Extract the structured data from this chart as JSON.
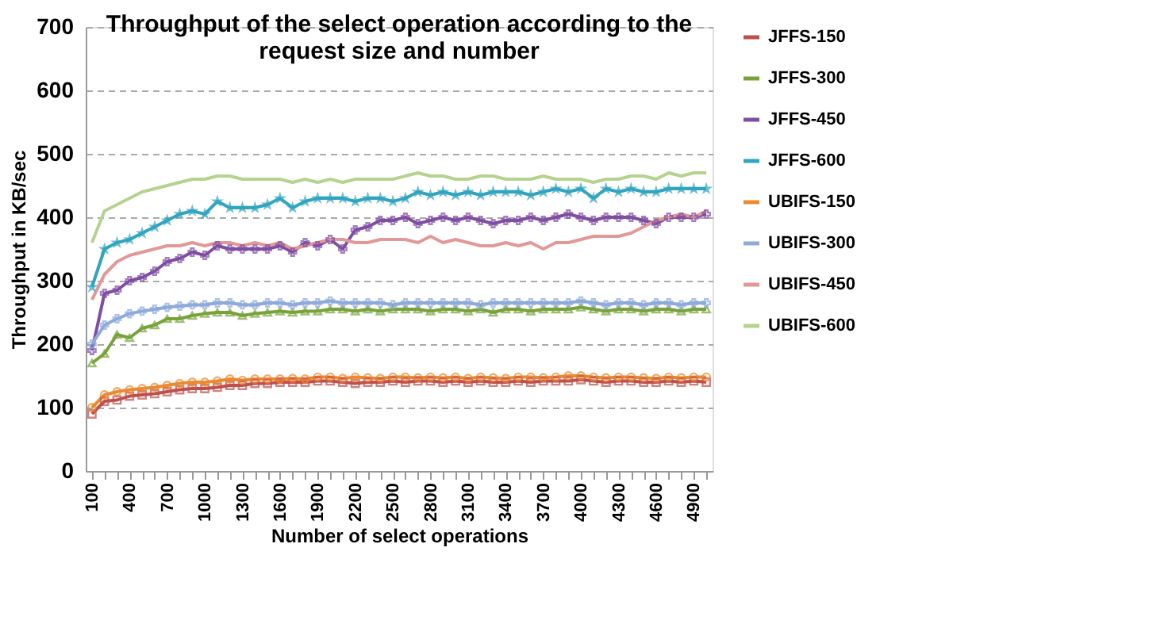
{
  "chart_data": {
    "type": "line",
    "title": [
      "Throughput of the select operation according to the",
      "request size and number"
    ],
    "xlabel": "Number of select operations",
    "ylabel": "Throughput  in KB/sec",
    "categories": [
      "100",
      null,
      null,
      "400",
      null,
      null,
      "700",
      null,
      null,
      "1000",
      null,
      null,
      "1300",
      null,
      null,
      "1600",
      null,
      null,
      "1900",
      null,
      null,
      "2200",
      null,
      null,
      "2500",
      null,
      null,
      "2800",
      null,
      null,
      "3100",
      null,
      null,
      "3400",
      null,
      null,
      "3700",
      null,
      null,
      "4000",
      null,
      null,
      "4300",
      null,
      null,
      "4600",
      null,
      null,
      "4900",
      null
    ],
    "ylim": [
      0,
      700
    ],
    "yticks": [
      0,
      100,
      200,
      300,
      400,
      500,
      600,
      700
    ],
    "grid": "y",
    "legend": "right",
    "series": [
      {
        "name": "JFFS-150",
        "color": "#c0504d",
        "marker": "square",
        "values": [
          90,
          110,
          112,
          118,
          120,
          122,
          125,
          128,
          130,
          130,
          132,
          135,
          135,
          138,
          138,
          140,
          140,
          140,
          142,
          142,
          140,
          138,
          140,
          140,
          142,
          140,
          142,
          142,
          140,
          142,
          140,
          142,
          140,
          140,
          142,
          140,
          142,
          142,
          142,
          144,
          142,
          140,
          142,
          142,
          140,
          140,
          142,
          140,
          142,
          140
        ]
      },
      {
        "name": "JFFS-300",
        "color": "#77a33a",
        "marker": "triangle",
        "values": [
          170,
          185,
          215,
          210,
          225,
          230,
          240,
          240,
          245,
          248,
          250,
          250,
          245,
          248,
          250,
          252,
          250,
          252,
          252,
          255,
          255,
          252,
          255,
          252,
          255,
          255,
          255,
          252,
          255,
          255,
          252,
          255,
          250,
          255,
          255,
          252,
          255,
          255,
          255,
          258,
          255,
          252,
          255,
          255,
          252,
          255,
          255,
          252,
          255,
          255
        ]
      },
      {
        "name": "JFFS-450",
        "color": "#7f4ea3",
        "marker": "cross",
        "values": [
          190,
          280,
          285,
          300,
          305,
          315,
          330,
          335,
          345,
          340,
          355,
          350,
          350,
          350,
          350,
          355,
          345,
          360,
          355,
          365,
          350,
          380,
          385,
          395,
          395,
          400,
          390,
          395,
          400,
          395,
          400,
          395,
          390,
          395,
          395,
          400,
          395,
          400,
          405,
          400,
          395,
          400,
          400,
          400,
          395,
          390,
          400,
          400,
          400,
          405
        ]
      },
      {
        "name": "JFFS-600",
        "color": "#31a5c0",
        "marker": "star",
        "values": [
          290,
          350,
          360,
          365,
          375,
          385,
          395,
          405,
          410,
          405,
          425,
          415,
          415,
          415,
          420,
          430,
          415,
          425,
          430,
          430,
          430,
          425,
          430,
          430,
          425,
          430,
          440,
          435,
          440,
          435,
          440,
          435,
          440,
          440,
          440,
          435,
          440,
          445,
          440,
          445,
          430,
          445,
          440,
          445,
          440,
          440,
          445,
          445,
          445,
          445
        ]
      },
      {
        "name": "UBIFS-150",
        "color": "#ec8a2f",
        "marker": "circle",
        "values": [
          100,
          120,
          125,
          128,
          130,
          132,
          135,
          138,
          140,
          140,
          142,
          145,
          143,
          145,
          145,
          145,
          146,
          145,
          148,
          148,
          146,
          148,
          147,
          146,
          148,
          148,
          147,
          148,
          147,
          148,
          146,
          148,
          147,
          146,
          148,
          148,
          147,
          148,
          150,
          150,
          148,
          147,
          148,
          148,
          147,
          146,
          148,
          147,
          148,
          148
        ]
      },
      {
        "name": "UBIFS-300",
        "color": "#8eaadb",
        "marker": "cross",
        "values": [
          200,
          230,
          240,
          248,
          252,
          255,
          258,
          260,
          262,
          262,
          265,
          265,
          262,
          262,
          265,
          265,
          262,
          265,
          265,
          268,
          265,
          265,
          265,
          265,
          262,
          265,
          265,
          265,
          265,
          265,
          265,
          262,
          265,
          265,
          265,
          265,
          265,
          265,
          265,
          268,
          265,
          262,
          265,
          265,
          262,
          265,
          265,
          262,
          265,
          265
        ]
      },
      {
        "name": "UBIFS-450",
        "color": "#e39898",
        "marker": "none",
        "values": [
          270,
          310,
          330,
          340,
          345,
          350,
          355,
          355,
          360,
          355,
          360,
          360,
          355,
          360,
          355,
          360,
          350,
          355,
          360,
          365,
          365,
          360,
          360,
          365,
          365,
          365,
          360,
          370,
          360,
          365,
          360,
          355,
          355,
          360,
          355,
          360,
          350,
          360,
          360,
          365,
          370,
          370,
          370,
          375,
          385,
          395,
          400,
          405,
          400,
          410
        ]
      },
      {
        "name": "UBIFS-600",
        "color": "#b5d38f",
        "marker": "none",
        "values": [
          360,
          410,
          420,
          430,
          440,
          445,
          450,
          455,
          460,
          460,
          465,
          465,
          460,
          460,
          460,
          460,
          455,
          460,
          455,
          460,
          455,
          460,
          460,
          460,
          460,
          465,
          470,
          465,
          465,
          460,
          460,
          465,
          465,
          460,
          460,
          460,
          465,
          460,
          460,
          460,
          455,
          460,
          460,
          465,
          465,
          460,
          470,
          465,
          470,
          470
        ]
      }
    ]
  }
}
